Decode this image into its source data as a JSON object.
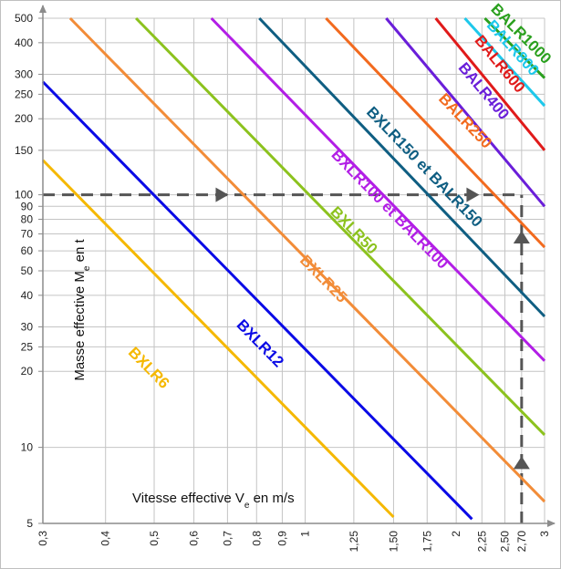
{
  "chart_data": {
    "type": "line",
    "xscale": "log",
    "yscale": "log",
    "xlim": [
      0.3,
      3
    ],
    "ylim": [
      5,
      500
    ],
    "grid": true,
    "xlabel": "Vitesse effective V",
    "xlabel_sub": "e",
    "xlabel_tail": " en m/s",
    "ylabel": "Masse effective M",
    "ylabel_sub": "e",
    "ylabel_tail": " en t",
    "x_ticks": [
      {
        "v": 0.3,
        "label": "0,3"
      },
      {
        "v": 0.4,
        "label": "0,4"
      },
      {
        "v": 0.5,
        "label": "0,5"
      },
      {
        "v": 0.6,
        "label": "0,6"
      },
      {
        "v": 0.7,
        "label": "0,7"
      },
      {
        "v": 0.8,
        "label": "0,8"
      },
      {
        "v": 0.9,
        "label": "0,9"
      },
      {
        "v": 1.0,
        "label": "1"
      },
      {
        "v": 1.25,
        "label": "1,25"
      },
      {
        "v": 1.5,
        "label": "1,50"
      },
      {
        "v": 1.75,
        "label": "1,75"
      },
      {
        "v": 2.0,
        "label": "2"
      },
      {
        "v": 2.25,
        "label": "2,25"
      },
      {
        "v": 2.5,
        "label": "2,50"
      },
      {
        "v": 2.7,
        "label": "2,70"
      },
      {
        "v": 3.0,
        "label": "3"
      }
    ],
    "y_ticks": [
      {
        "v": 5,
        "label": "5"
      },
      {
        "v": 10,
        "label": "10"
      },
      {
        "v": 20,
        "label": "20"
      },
      {
        "v": 25,
        "label": "25"
      },
      {
        "v": 30,
        "label": "30"
      },
      {
        "v": 40,
        "label": "40"
      },
      {
        "v": 50,
        "label": "50"
      },
      {
        "v": 60,
        "label": "60"
      },
      {
        "v": 70,
        "label": "70"
      },
      {
        "v": 80,
        "label": "80"
      },
      {
        "v": 90,
        "label": "90"
      },
      {
        "v": 100,
        "label": "100"
      },
      {
        "v": 150,
        "label": "150"
      },
      {
        "v": 200,
        "label": "200"
      },
      {
        "v": 250,
        "label": "250"
      },
      {
        "v": 300,
        "label": "300"
      },
      {
        "v": 400,
        "label": "400"
      },
      {
        "v": 500,
        "label": "500"
      }
    ],
    "series": [
      {
        "name": "BXLR6",
        "color": "#F5B800",
        "x": [
          0.3,
          1.5
        ],
        "y": [
          137,
          5.3
        ],
        "label_at": [
          0.48,
          20
        ]
      },
      {
        "name": "BXLR12",
        "color": "#0A0AE6",
        "x": [
          0.3,
          2.15
        ],
        "y": [
          280,
          5.2
        ],
        "label_at": [
          0.8,
          25
        ]
      },
      {
        "name": "BXLR25",
        "color": "#F28C38",
        "x": [
          0.34,
          3.0
        ],
        "y": [
          500,
          6.1
        ],
        "label_at": [
          1.07,
          45
        ]
      },
      {
        "name": "BXLR50",
        "color": "#8CC21E",
        "x": [
          0.46,
          3.0
        ],
        "y": [
          500,
          11.2
        ],
        "label_at": [
          1.23,
          70
        ]
      },
      {
        "name": "BXLR100 et BALR100",
        "color": "#B21EE6",
        "x": [
          0.65,
          3.0
        ],
        "y": [
          500,
          22
        ],
        "label_at": [
          1.45,
          85
        ]
      },
      {
        "name": "BXLR150 et BALR150",
        "color": "#0F5E82",
        "x": [
          0.81,
          3.0
        ],
        "y": [
          500,
          33
        ],
        "label_at": [
          1.7,
          125
        ]
      },
      {
        "name": "BALR250",
        "color": "#F26A1E",
        "x": [
          1.1,
          3.0
        ],
        "y": [
          500,
          62
        ],
        "label_at": [
          2.05,
          190
        ]
      },
      {
        "name": "BALR400",
        "color": "#6A1ED9",
        "x": [
          1.45,
          3.0
        ],
        "y": [
          500,
          90
        ],
        "label_at": [
          2.23,
          250
        ]
      },
      {
        "name": "BALR600",
        "color": "#E01A1A",
        "x": [
          1.82,
          3.0
        ],
        "y": [
          500,
          150
        ],
        "label_at": [
          2.4,
          320
        ]
      },
      {
        "name": "BALR800",
        "color": "#1EC8EB",
        "x": [
          2.08,
          3.0
        ],
        "y": [
          500,
          225
        ],
        "label_at": [
          2.55,
          370
        ]
      },
      {
        "name": "BALR1000",
        "color": "#2AA01E",
        "x": [
          2.28,
          3.0
        ],
        "y": [
          500,
          290
        ],
        "label_at": [
          2.65,
          420
        ]
      }
    ],
    "reference_lines": [
      {
        "kind": "horizontal",
        "y": 100,
        "x_from": 0.3,
        "x_to": 2.7
      },
      {
        "kind": "vertical",
        "x": 2.7,
        "y_from": 5,
        "y_to": 100
      }
    ],
    "arrows": [
      {
        "x": 0.68,
        "y": 100,
        "direction": "right"
      },
      {
        "x": 2.15,
        "y": 100,
        "direction": "right"
      },
      {
        "x": 2.7,
        "y": 8.7,
        "direction": "up"
      },
      {
        "x": 2.7,
        "y": 68,
        "direction": "up"
      }
    ]
  }
}
